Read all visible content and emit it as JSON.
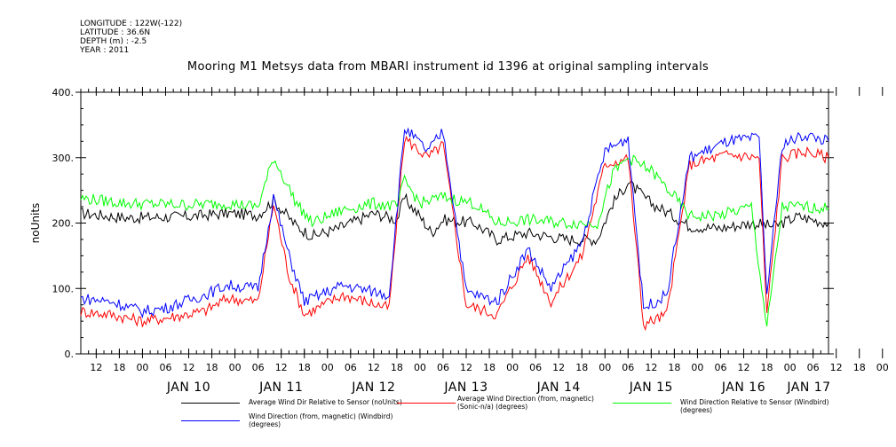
{
  "header": {
    "longitude": "LONGITUDE : 122W(-122)",
    "latitude": "LATITUDE : 36.6N",
    "depth": "DEPTH (m) : -2.5",
    "year": "YEAR : 2011"
  },
  "chart_data": {
    "type": "line",
    "title": "Mooring M1 Metsys data from MBARI instrument id 1396 at original sampling intervals",
    "ylabel": "noUnits",
    "xlabel": "",
    "ylim": [
      0,
      400
    ],
    "yticks": [
      "0.",
      "100.",
      "200.",
      "300.",
      "400."
    ],
    "xlim": [
      "2011-01-09 08:00",
      "2011-01-17 10:00"
    ],
    "hour_ticks": [
      "12",
      "18",
      "00",
      "06",
      "12",
      "18",
      "00",
      "06",
      "12",
      "18",
      "00",
      "06",
      "12",
      "18",
      "00",
      "06",
      "12",
      "18",
      "00",
      "06",
      "12",
      "18",
      "00",
      "06",
      "12",
      "18",
      "00",
      "06",
      "12",
      "18",
      "00",
      "06",
      "12",
      "18",
      "00",
      "06"
    ],
    "day_labels": [
      "JAN 10",
      "JAN 11",
      "JAN 12",
      "JAN 13",
      "JAN 14",
      "JAN 15",
      "JAN 16",
      "JAN 17"
    ],
    "grid": false,
    "legend_position": "bottom",
    "series": [
      {
        "name": "Average Wind Dir Relative to Sensor (noUnits)",
        "color": "#000000",
        "points": [
          [
            "2011-01-09 08:00",
            215
          ],
          [
            "2011-01-09 20:00",
            208
          ],
          [
            "2011-01-10 12:00",
            210
          ],
          [
            "2011-01-10 22:00",
            215
          ],
          [
            "2011-01-11 06:00",
            212
          ],
          [
            "2011-01-11 10:00",
            235
          ],
          [
            "2011-01-11 16:00",
            195
          ],
          [
            "2011-01-11 20:00",
            180
          ],
          [
            "2011-01-12 02:00",
            190
          ],
          [
            "2011-01-12 06:00",
            200
          ],
          [
            "2011-01-12 12:00",
            215
          ],
          [
            "2011-01-12 18:00",
            205
          ],
          [
            "2011-01-12 20:00",
            238
          ],
          [
            "2011-01-13 00:00",
            210
          ],
          [
            "2011-01-13 03:00",
            185
          ],
          [
            "2011-01-13 06:00",
            205
          ],
          [
            "2011-01-13 14:00",
            200
          ],
          [
            "2011-01-13 20:00",
            175
          ],
          [
            "2011-01-14 04:00",
            185
          ],
          [
            "2011-01-14 14:00",
            175
          ],
          [
            "2011-01-14 22:00",
            175
          ],
          [
            "2011-01-15 02:00",
            230
          ],
          [
            "2011-01-15 06:00",
            262
          ],
          [
            "2011-01-15 12:00",
            230
          ],
          [
            "2011-01-15 18:00",
            210
          ],
          [
            "2011-01-15 22:00",
            195
          ],
          [
            "2011-01-16 06:00",
            192
          ],
          [
            "2011-01-16 14:00",
            200
          ],
          [
            "2011-01-16 20:00",
            195
          ],
          [
            "2011-01-17 02:00",
            210
          ],
          [
            "2011-01-17 10:00",
            200
          ]
        ]
      },
      {
        "name": "Average Wind Direction (from, magnetic) (Sonic-n/a) (degrees)",
        "color": "#ff0000",
        "points": [
          [
            "2011-01-09 08:00",
            65
          ],
          [
            "2011-01-09 16:00",
            60
          ],
          [
            "2011-01-10 00:00",
            50
          ],
          [
            "2011-01-10 06:00",
            55
          ],
          [
            "2011-01-10 16:00",
            65
          ],
          [
            "2011-01-10 22:00",
            85
          ],
          [
            "2011-01-11 06:00",
            80
          ],
          [
            "2011-01-11 10:00",
            230
          ],
          [
            "2011-01-11 14:00",
            120
          ],
          [
            "2011-01-11 18:00",
            60
          ],
          [
            "2011-01-12 04:00",
            90
          ],
          [
            "2011-01-12 16:00",
            70
          ],
          [
            "2011-01-12 20:00",
            330
          ],
          [
            "2011-01-13 02:00",
            300
          ],
          [
            "2011-01-13 06:00",
            320
          ],
          [
            "2011-01-13 12:00",
            75
          ],
          [
            "2011-01-13 20:00",
            60
          ],
          [
            "2011-01-14 04:00",
            150
          ],
          [
            "2011-01-14 10:00",
            80
          ],
          [
            "2011-01-14 18:00",
            150
          ],
          [
            "2011-01-15 00:00",
            290
          ],
          [
            "2011-01-15 06:00",
            300
          ],
          [
            "2011-01-15 10:00",
            45
          ],
          [
            "2011-01-15 16:00",
            60
          ],
          [
            "2011-01-15 22:00",
            290
          ],
          [
            "2011-01-16 08:00",
            305
          ],
          [
            "2011-01-16 16:00",
            300
          ],
          [
            "2011-01-16 18:00",
            60
          ],
          [
            "2011-01-16 22:00",
            300
          ],
          [
            "2011-01-17 04:00",
            310
          ],
          [
            "2011-01-17 10:00",
            300
          ]
        ]
      },
      {
        "name": "Wind Direction Relative to Sensor (Windbird) (degrees)",
        "color": "#00ff00",
        "points": [
          [
            "2011-01-09 08:00",
            238
          ],
          [
            "2011-01-09 20:00",
            230
          ],
          [
            "2011-01-10 12:00",
            228
          ],
          [
            "2011-01-10 22:00",
            230
          ],
          [
            "2011-01-11 06:00",
            225
          ],
          [
            "2011-01-11 10:00",
            300
          ],
          [
            "2011-01-11 16:00",
            230
          ],
          [
            "2011-01-11 20:00",
            200
          ],
          [
            "2011-01-12 04:00",
            220
          ],
          [
            "2011-01-12 12:00",
            230
          ],
          [
            "2011-01-12 18:00",
            225
          ],
          [
            "2011-01-12 20:00",
            265
          ],
          [
            "2011-01-13 00:00",
            230
          ],
          [
            "2011-01-13 06:00",
            240
          ],
          [
            "2011-01-13 14:00",
            230
          ],
          [
            "2011-01-13 20:00",
            200
          ],
          [
            "2011-01-14 04:00",
            205
          ],
          [
            "2011-01-14 14:00",
            200
          ],
          [
            "2011-01-14 22:00",
            200
          ],
          [
            "2011-01-15 02:00",
            275
          ],
          [
            "2011-01-15 06:00",
            300
          ],
          [
            "2011-01-15 12:00",
            280
          ],
          [
            "2011-01-15 18:00",
            240
          ],
          [
            "2011-01-15 22:00",
            210
          ],
          [
            "2011-01-16 06:00",
            212
          ],
          [
            "2011-01-16 14:00",
            225
          ],
          [
            "2011-01-16 18:00",
            40
          ],
          [
            "2011-01-16 22:00",
            225
          ],
          [
            "2011-01-17 04:00",
            225
          ],
          [
            "2011-01-17 10:00",
            222
          ]
        ]
      },
      {
        "name": "Wind Direction (from, magnetic) (Windbird) (degrees)",
        "color": "#0000ff",
        "points": [
          [
            "2011-01-09 08:00",
            85
          ],
          [
            "2011-01-09 16:00",
            80
          ],
          [
            "2011-01-10 00:00",
            65
          ],
          [
            "2011-01-10 06:00",
            70
          ],
          [
            "2011-01-10 16:00",
            90
          ],
          [
            "2011-01-10 22:00",
            105
          ],
          [
            "2011-01-11 06:00",
            100
          ],
          [
            "2011-01-11 10:00",
            240
          ],
          [
            "2011-01-11 14:00",
            150
          ],
          [
            "2011-01-11 18:00",
            80
          ],
          [
            "2011-01-12 04:00",
            105
          ],
          [
            "2011-01-12 16:00",
            90
          ],
          [
            "2011-01-12 20:00",
            345
          ],
          [
            "2011-01-13 02:00",
            310
          ],
          [
            "2011-01-13 06:00",
            340
          ],
          [
            "2011-01-13 12:00",
            95
          ],
          [
            "2011-01-13 20:00",
            80
          ],
          [
            "2011-01-14 04:00",
            160
          ],
          [
            "2011-01-14 10:00",
            100
          ],
          [
            "2011-01-14 18:00",
            170
          ],
          [
            "2011-01-15 00:00",
            310
          ],
          [
            "2011-01-15 06:00",
            330
          ],
          [
            "2011-01-15 10:00",
            70
          ],
          [
            "2011-01-15 16:00",
            90
          ],
          [
            "2011-01-15 22:00",
            300
          ],
          [
            "2011-01-16 08:00",
            325
          ],
          [
            "2011-01-16 16:00",
            330
          ],
          [
            "2011-01-16 18:00",
            90
          ],
          [
            "2011-01-16 22:00",
            320
          ],
          [
            "2011-01-17 04:00",
            335
          ],
          [
            "2011-01-17 10:00",
            325
          ]
        ]
      }
    ]
  }
}
